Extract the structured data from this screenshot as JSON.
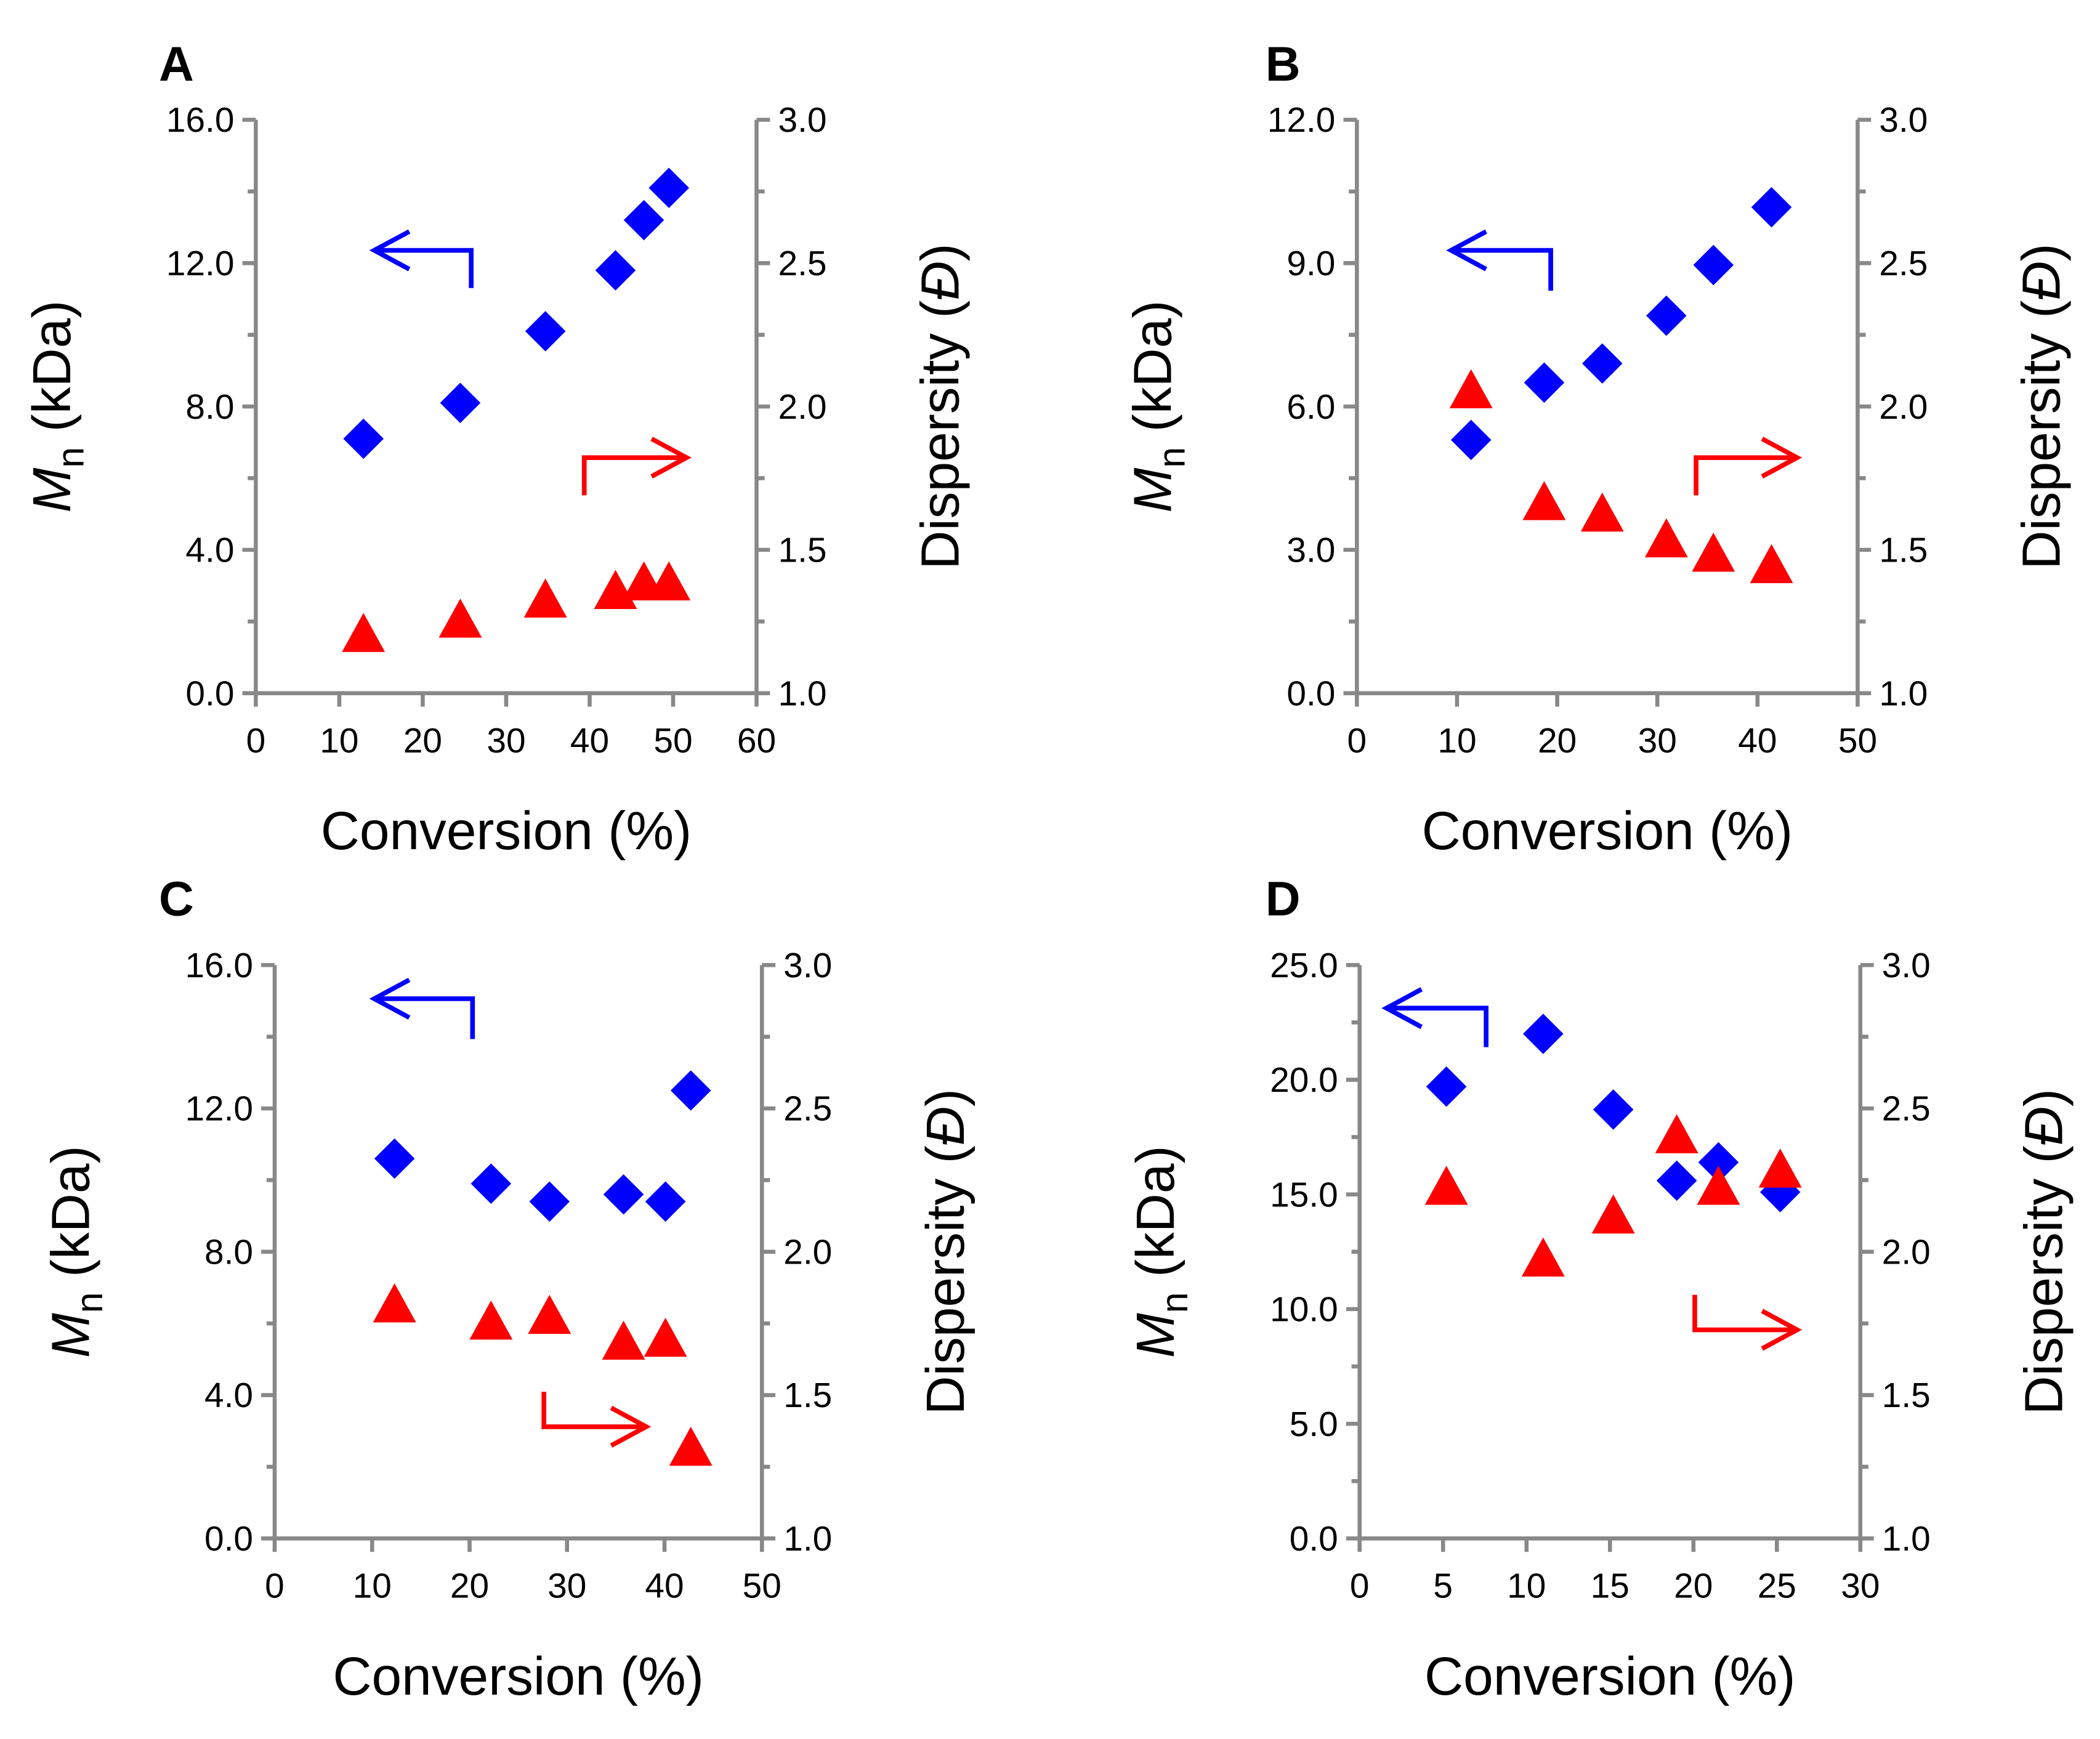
{
  "chart_data": [
    {
      "type": "scatter",
      "title": "A",
      "xlabel": "Conversion (%)",
      "ylabel": [
        "M",
        "n",
        " (kDa)"
      ],
      "y2label": [
        "Dispersity (",
        "Đ",
        ")"
      ],
      "x": [
        12.9,
        24.5,
        34.7,
        43.1,
        46.5,
        49.5
      ],
      "series": [
        {
          "color": "#0000ff",
          "marker": "diamond",
          "values": [
            7.1,
            8.1,
            10.1,
            11.8,
            13.2,
            14.1
          ]
        },
        {
          "color": "#ff0000",
          "marker": "triangle",
          "axis": "y2",
          "values": [
            1.2,
            1.25,
            1.32,
            1.35,
            1.38,
            1.38
          ]
        }
      ],
      "xlim": [
        0,
        60
      ],
      "xticks": [
        0,
        10,
        20,
        30,
        40,
        50,
        60
      ],
      "ylim": [
        0,
        16
      ],
      "yticks": [
        {
          "value": 0,
          "label": "0.0"
        },
        {
          "value": 4,
          "label": "4.0"
        },
        {
          "value": 8,
          "label": "8.0"
        },
        {
          "value": 12,
          "label": "12.0"
        },
        {
          "value": 16,
          "label": "16.0"
        }
      ],
      "y2lim": [
        1,
        3
      ],
      "y2ticks": [
        {
          "value": 1,
          "label": "1.0"
        },
        1.5,
        {
          "value": 2,
          "label": "2.0"
        },
        2.5,
        {
          "value": 3,
          "label": "3.0"
        }
      ]
    },
    {
      "type": "scatter",
      "title": "B",
      "xlabel": "Conversion (%)",
      "ylabel": [
        "M",
        "n",
        " (kDa)"
      ],
      "y2label": [
        "Dispersity (",
        "Đ",
        ")"
      ],
      "x": [
        11.4,
        18.7,
        24.5,
        30.9,
        35.6,
        41.4
      ],
      "series": [
        {
          "color": "#0000ff",
          "marker": "diamond",
          "values": [
            5.3,
            6.5,
            6.9,
            7.9,
            8.96,
            10.17
          ]
        },
        {
          "color": "#ff0000",
          "marker": "triangle",
          "axis": "y2",
          "values": [
            2.05,
            1.66,
            1.62,
            1.53,
            1.48,
            1.44
          ]
        }
      ],
      "xlim": [
        0,
        50
      ],
      "xticks": [
        0,
        10,
        20,
        30,
        40,
        50
      ],
      "ylim": [
        0,
        12
      ],
      "yticks": [
        {
          "value": 0,
          "label": "0.0"
        },
        {
          "value": 3,
          "label": "3.0"
        },
        {
          "value": 6,
          "label": "6.0"
        },
        {
          "value": 9,
          "label": "9.0"
        },
        {
          "value": 12,
          "label": "12.0"
        }
      ],
      "y2lim": [
        1,
        3
      ],
      "y2ticks": [
        {
          "value": 1,
          "label": "1.0"
        },
        1.5,
        {
          "value": 2,
          "label": "2.0"
        },
        2.5,
        {
          "value": 3,
          "label": "3.0"
        }
      ]
    },
    {
      "type": "scatter",
      "title": "C",
      "xlabel": "Conversion (%)",
      "ylabel": [
        "M",
        "n",
        " (kDa)"
      ],
      "y2label": [
        "Dispersity (",
        "Đ",
        ")"
      ],
      "x": [
        12.3,
        22.2,
        28.2,
        35.8,
        40.1,
        42.7
      ],
      "series": [
        {
          "color": "#0000ff",
          "marker": "diamond",
          "values": [
            10.6,
            9.9,
            9.4,
            9.6,
            9.4,
            12.5
          ]
        },
        {
          "color": "#ff0000",
          "marker": "triangle",
          "axis": "y2",
          "values": [
            1.81,
            1.75,
            1.77,
            1.68,
            1.69,
            1.31
          ]
        }
      ],
      "xlim": [
        0,
        50
      ],
      "xticks": [
        0,
        10,
        20,
        30,
        40,
        50
      ],
      "ylim": [
        0,
        16
      ],
      "yticks": [
        {
          "value": 0,
          "label": "0.0"
        },
        {
          "value": 4,
          "label": "4.0"
        },
        {
          "value": 8,
          "label": "8.0"
        },
        {
          "value": 12,
          "label": "12.0"
        },
        {
          "value": 16,
          "label": "16.0"
        }
      ],
      "y2lim": [
        1,
        3
      ],
      "y2ticks": [
        {
          "value": 1,
          "label": "1.0"
        },
        1.5,
        {
          "value": 2,
          "label": "2.0"
        },
        2.5,
        {
          "value": 3,
          "label": "3.0"
        }
      ]
    },
    {
      "type": "scatter",
      "title": "D",
      "xlabel": "Conversion (%)",
      "ylabel": [
        "M",
        "n",
        " (kDa)"
      ],
      "y2label": [
        "Dispersity (",
        "Đ",
        ")"
      ],
      "x": [
        5.2,
        11.0,
        15.2,
        19.0,
        21.5,
        25.2
      ],
      "series": [
        {
          "color": "#0000ff",
          "marker": "diamond",
          "values": [
            19.7,
            22.0,
            18.7,
            15.6,
            16.4,
            15.1
          ]
        },
        {
          "color": "#ff0000",
          "marker": "triangle",
          "axis": "y2",
          "values": [
            2.22,
            1.97,
            2.12,
            2.4,
            2.22,
            2.28
          ]
        }
      ],
      "xlim": [
        0,
        30
      ],
      "xticks": [
        0,
        5,
        10,
        15,
        20,
        25,
        30
      ],
      "ylim": [
        0,
        25
      ],
      "yticks": [
        {
          "value": 0,
          "label": "0.0"
        },
        {
          "value": 5,
          "label": "5.0"
        },
        {
          "value": 10,
          "label": "10.0"
        },
        {
          "value": 15,
          "label": "15.0"
        },
        {
          "value": 20,
          "label": "20.0"
        },
        {
          "value": 25,
          "label": "25.0"
        }
      ],
      "y2lim": [
        1,
        3
      ],
      "y2ticks": [
        {
          "value": 1,
          "label": "1.0"
        },
        1.5,
        {
          "value": 2,
          "label": "2.0"
        },
        2.5,
        {
          "value": 3,
          "label": "3.0"
        }
      ]
    }
  ]
}
